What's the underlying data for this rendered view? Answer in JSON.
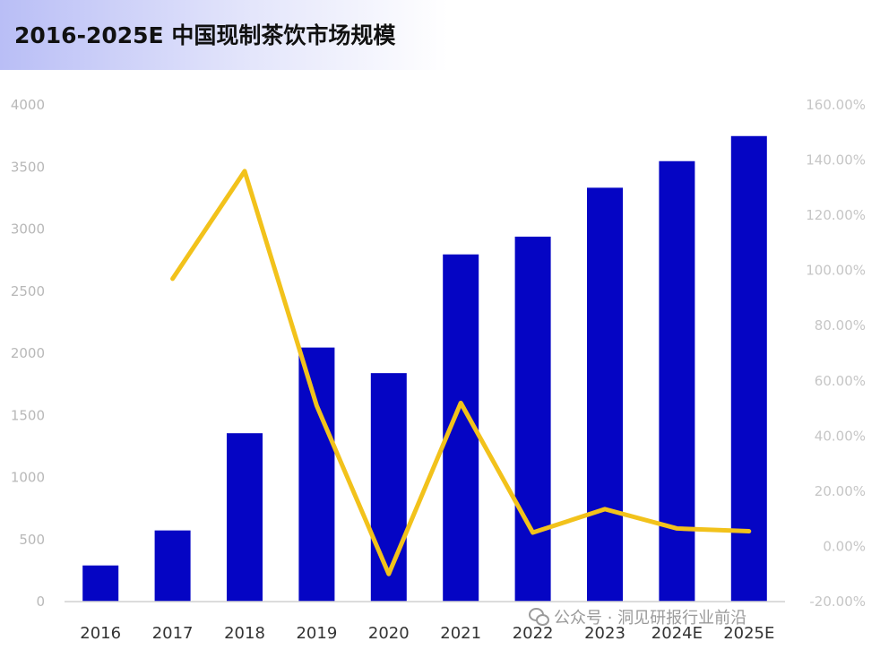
{
  "title": "2016-2025E 中国现制茶饮市场规模",
  "watermark": {
    "icon": "wechat-icon",
    "text": "公众号 · 洞见研报行业前沿"
  },
  "colors": {
    "bar": "#0505c4",
    "line": "#f2c21b"
  },
  "chart_data": {
    "type": "bar",
    "categories": [
      "2016",
      "2017",
      "2018",
      "2019",
      "2020",
      "2021",
      "2022",
      "2023",
      "2024E",
      "2025E"
    ],
    "series": [
      {
        "type": "bar",
        "axis": "left",
        "values": [
          291,
          573,
          1356,
          2046,
          1840,
          2796,
          2939,
          3333,
          3547,
          3749
        ]
      },
      {
        "type": "line",
        "axis": "right",
        "unit": "%",
        "values": [
          null,
          97,
          136,
          51,
          -10,
          52,
          5,
          13.5,
          6.5,
          5.5
        ]
      }
    ],
    "y_left": {
      "range": [
        0,
        4000
      ],
      "ticks": [
        "0",
        "500",
        "1000",
        "1500",
        "2000",
        "2500",
        "3000",
        "3500",
        "4000"
      ]
    },
    "y_right": {
      "range": [
        -20,
        160
      ],
      "ticks": [
        "-20.00%",
        "0.00%",
        "20.00%",
        "40.00%",
        "60.00%",
        "80.00%",
        "100.00%",
        "120.00%",
        "140.00%",
        "160.00%"
      ]
    },
    "grid": false,
    "legend": "none"
  }
}
